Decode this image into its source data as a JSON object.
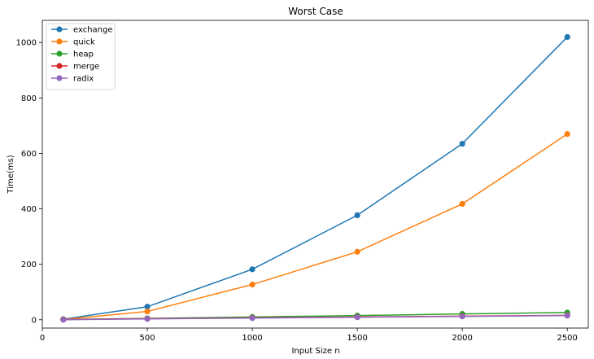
{
  "chart_data": {
    "type": "line",
    "title": "Worst Case",
    "xlabel": "Input Size n",
    "ylabel": "Time(ms)",
    "x": [
      100,
      500,
      1000,
      1500,
      2000,
      2500
    ],
    "xlim": [
      0,
      2600
    ],
    "ylim": [
      -30,
      1080
    ],
    "xticks": [
      0,
      500,
      1000,
      1500,
      2000,
      2500
    ],
    "yticks": [
      0,
      200,
      400,
      600,
      800,
      1000
    ],
    "grid": false,
    "legend_position": "top-left",
    "marker": "circle",
    "series": [
      {
        "name": "exchange",
        "color": "#1f77b4",
        "values": [
          2,
          47,
          182,
          377,
          635,
          1020
        ]
      },
      {
        "name": "quick",
        "color": "#ff7f0e",
        "values": [
          1,
          30,
          127,
          245,
          418,
          670
        ]
      },
      {
        "name": "heap",
        "color": "#2ca02c",
        "values": [
          1,
          5,
          10,
          15,
          21,
          26
        ]
      },
      {
        "name": "merge",
        "color": "#d62728",
        "values": [
          1,
          4,
          7,
          10,
          13,
          16
        ]
      },
      {
        "name": "radix",
        "color": "#9467bd",
        "values": [
          0,
          3,
          6,
          9,
          12,
          15
        ]
      }
    ]
  }
}
